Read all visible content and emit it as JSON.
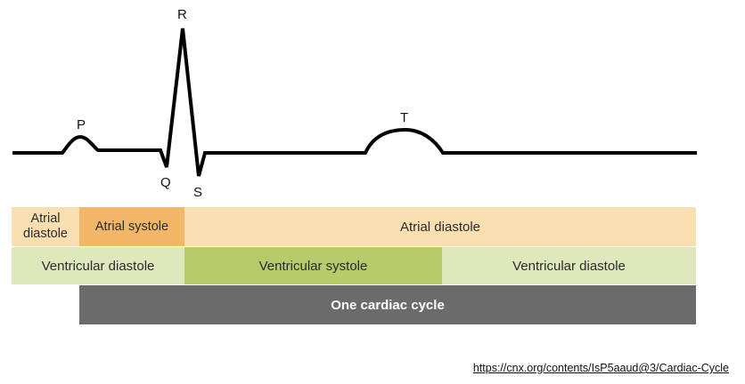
{
  "wave_labels": {
    "p": "P",
    "q": "Q",
    "r": "R",
    "s": "S",
    "t": "T"
  },
  "atrial_row": {
    "left_label": "Atrial diastole",
    "systole_label": "Atrial systole",
    "diastole_label": "Atrial diastole"
  },
  "ventricular_row": {
    "left_label": "Ventricular diastole",
    "systole_label": "Ventricular systole",
    "right_label": "Ventricular diastole"
  },
  "cycle_label": "One cardiac cycle",
  "source_url": "https://cnx.org/contents/IsP5aaud@3/Cardiac-Cycle",
  "colors": {
    "atrial_diastole": "#f9dfb0",
    "atrial_systole": "#f2b766",
    "ventricular_diastole": "#dfe8bd",
    "ventricular_systole": "#b8cb6b",
    "cycle_bar": "#6b6b6b"
  }
}
